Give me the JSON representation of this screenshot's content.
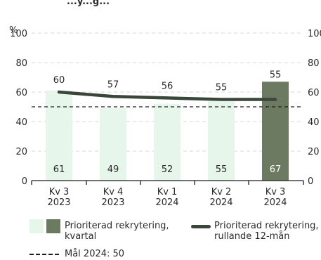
{
  "chart_data": {
    "type": "bar",
    "title_fragment": "...y...g...",
    "y_unit_label": "%",
    "ylim": [
      0,
      100
    ],
    "yticks": [
      0,
      20,
      40,
      60,
      80,
      100
    ],
    "categories": [
      "Kv 3\n2023",
      "Kv 4\n2023",
      "Kv 1\n2024",
      "Kv 2\n2024",
      "Kv 3\n2024"
    ],
    "series": [
      {
        "name": "Prioriterad rekrytering, kvartal",
        "type": "bar",
        "values": [
          61,
          49,
          52,
          55,
          67
        ]
      },
      {
        "name": "Prioriterad rekrytering, rullande 12-mån",
        "type": "line",
        "values": [
          60,
          57,
          56,
          55,
          55
        ]
      }
    ],
    "target": {
      "label": "Mål 2024: 50",
      "value": 50
    },
    "colors": {
      "bar_light": "#e6f6ea",
      "bar_highlight": "#6d7a62",
      "line": "#3b463a",
      "target_line": "#1e1e1e",
      "grid": "#d9d9d9"
    },
    "legend": {
      "bar_label_line1": "Prioriterad rekrytering,",
      "bar_label_line2": "kvartal",
      "line_label_line1": "Prioriterad rekrytering,",
      "line_label_line2": "rullande 12-mån",
      "target_label": "Mål 2024: 50"
    }
  }
}
